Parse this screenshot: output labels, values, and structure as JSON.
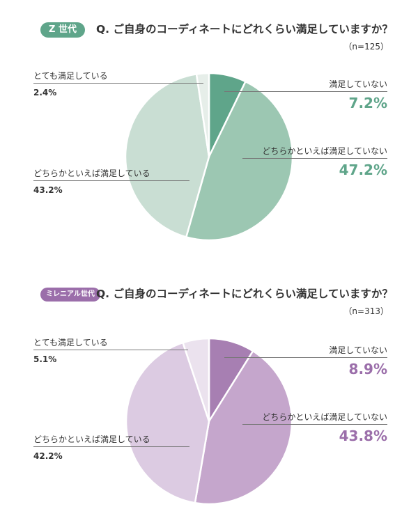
{
  "chart_data": [
    {
      "type": "pie",
      "badge": "Z 世代",
      "question": "Q. ご自身のコーディネートにどれくらい満足していますか？",
      "sample": "（n=125）",
      "slices": [
        {
          "label": "満足していない",
          "value": 7.2,
          "display": "7.2%",
          "color": "#5fa58a"
        },
        {
          "label": "どちらかといえば満足していない",
          "value": 47.2,
          "display": "47.2%",
          "color": "#9cc7b2"
        },
        {
          "label": "どちらかといえば満足している",
          "value": 43.2,
          "display": "43.2%",
          "color": "#c9ded3"
        },
        {
          "label": "とても満足している",
          "value": 2.4,
          "display": "2.4%",
          "color": "#e6eee9"
        }
      ],
      "accent": "#5fa58a"
    },
    {
      "type": "pie",
      "badge": "ミレニアル世代",
      "question": "Q. ご自身のコーディネートにどれくらい満足していますか？",
      "sample": "（n=313）",
      "slices": [
        {
          "label": "満足していない",
          "value": 8.9,
          "display": "8.9%",
          "color": "#a77fb2"
        },
        {
          "label": "どちらかといえば満足していない",
          "value": 43.8,
          "display": "43.8%",
          "color": "#c5a6cc"
        },
        {
          "label": "どちらかといえば満足している",
          "value": 42.2,
          "display": "42.2%",
          "color": "#dccbe2"
        },
        {
          "label": "とても満足している",
          "value": 5.1,
          "display": "5.1%",
          "color": "#ebe2ee"
        }
      ],
      "accent": "#9b6eaa"
    }
  ]
}
